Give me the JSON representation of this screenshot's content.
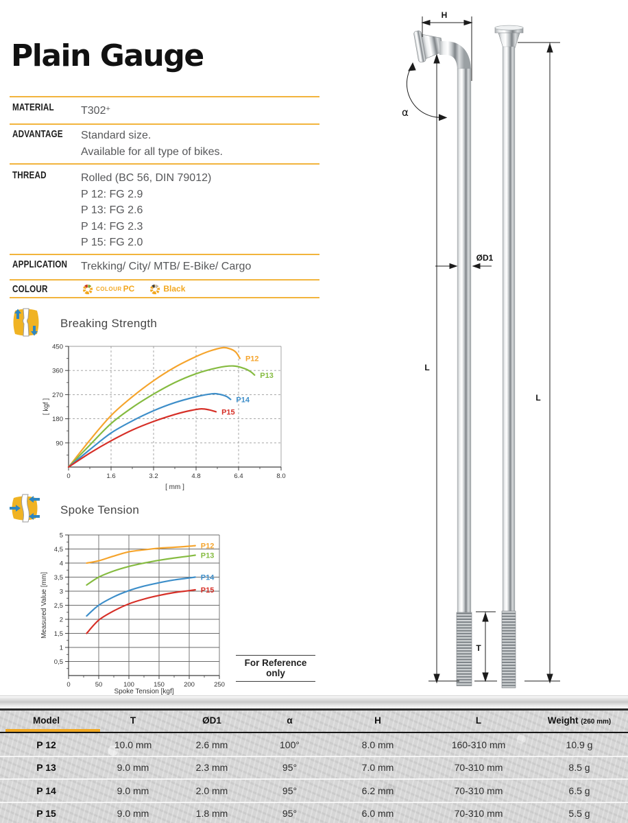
{
  "title": "Plain Gauge",
  "specs": {
    "material": {
      "label": "MATERIAL",
      "value": "T302",
      "sup": "+"
    },
    "advantage": {
      "label": "ADVANTAGE",
      "line1": "Standard size.",
      "line2": "Available for all type of bikes."
    },
    "thread": {
      "label": "THREAD",
      "line1": "Rolled (BC 56, DIN 79012)",
      "line2": "P 12: FG 2.9",
      "line3": "P 13: FG 2.6",
      "line4": "P 14: FG 2.3",
      "line5": "P 15: FG 2.0"
    },
    "application": {
      "label": "APPLICATION",
      "value": "Trekking/ City/ MTB/ E-Bike/ Cargo"
    },
    "colour": {
      "label": "COLOUR",
      "option1_prefix": "COLOUR",
      "option1_name": "PC",
      "option2_name": "Black"
    }
  },
  "sections": {
    "breaking_strength_title": "Breaking Strength",
    "spoke_tension_title": "Spoke Tension"
  },
  "reference_note": "For Reference only",
  "colors": {
    "accent_line": "#F2B43C",
    "table_accent": "#F0A822",
    "p12": "#F5A42C",
    "p13": "#85BB40",
    "p14": "#3D8EC9",
    "p15": "#D62F27"
  },
  "chart_data": [
    {
      "id": "chart-bs",
      "type": "line",
      "title": "Breaking Strength",
      "xlabel": "[ mm ]",
      "ylabel": "[ kgf ]",
      "xlim": [
        0,
        8
      ],
      "ylim": [
        0,
        450
      ],
      "grid": "dashed",
      "legend_position": "end-of-line",
      "x_ticks": [
        {
          "v": 0,
          "t": "0"
        },
        {
          "v": 1.6,
          "t": "1.6"
        },
        {
          "v": 3.2,
          "t": "3.2"
        },
        {
          "v": 4.8,
          "t": "4.8"
        },
        {
          "v": 6.4,
          "t": "6.4"
        },
        {
          "v": 8,
          "t": "8.0"
        }
      ],
      "y_ticks": [
        {
          "v": 90,
          "t": "90"
        },
        {
          "v": 180,
          "t": "180"
        },
        {
          "v": 270,
          "t": "270"
        },
        {
          "v": 360,
          "t": "360"
        },
        {
          "v": 450,
          "t": "450"
        }
      ],
      "x_minor": [
        0.8,
        2.4,
        4.0,
        5.6,
        7.2
      ],
      "y_minor": [
        45,
        135,
        225,
        315,
        405
      ],
      "series": [
        {
          "name": "P12",
          "color": "#F5A42C",
          "points": [
            [
              0,
              0
            ],
            [
              0.8,
              100
            ],
            [
              1.6,
              192
            ],
            [
              2.4,
              262
            ],
            [
              3.2,
              322
            ],
            [
              4.0,
              372
            ],
            [
              4.8,
              412
            ],
            [
              5.3,
              432
            ],
            [
              5.8,
              445
            ],
            [
              6.1,
              440
            ],
            [
              6.3,
              428
            ],
            [
              6.45,
              405
            ]
          ]
        },
        {
          "name": "P13",
          "color": "#85BB40",
          "points": [
            [
              0,
              0
            ],
            [
              0.8,
              82
            ],
            [
              1.6,
              162
            ],
            [
              2.4,
              222
            ],
            [
              3.2,
              272
            ],
            [
              4.0,
              315
            ],
            [
              4.8,
              348
            ],
            [
              5.6,
              370
            ],
            [
              6.2,
              377
            ],
            [
              6.6,
              368
            ],
            [
              6.85,
              356
            ],
            [
              7.0,
              343
            ]
          ]
        },
        {
          "name": "P14",
          "color": "#3D8EC9",
          "points": [
            [
              0,
              0
            ],
            [
              0.8,
              65
            ],
            [
              1.6,
              127
            ],
            [
              2.4,
              172
            ],
            [
              3.2,
              210
            ],
            [
              4.0,
              240
            ],
            [
              4.8,
              262
            ],
            [
              5.4,
              273
            ],
            [
              5.7,
              271
            ],
            [
              5.95,
              263
            ],
            [
              6.1,
              252
            ]
          ]
        },
        {
          "name": "P15",
          "color": "#D62F27",
          "points": [
            [
              0,
              0
            ],
            [
              0.8,
              52
            ],
            [
              1.6,
              98
            ],
            [
              2.4,
              138
            ],
            [
              3.2,
              170
            ],
            [
              4.0,
              196
            ],
            [
              4.6,
              211
            ],
            [
              5.0,
              217
            ],
            [
              5.3,
              213
            ],
            [
              5.55,
              206
            ]
          ]
        }
      ]
    },
    {
      "id": "chart-st",
      "type": "line",
      "title": "Spoke Tension",
      "xlabel": "Spoke Tension [kgf]",
      "ylabel": "Measured Value [mm]",
      "xlim": [
        0,
        250
      ],
      "ylim": [
        0,
        5
      ],
      "grid": "solid",
      "legend_position": "end-of-line",
      "x_ticks": [
        {
          "v": 0,
          "t": "0"
        },
        {
          "v": 50,
          "t": "50"
        },
        {
          "v": 100,
          "t": "100"
        },
        {
          "v": 150,
          "t": "150"
        },
        {
          "v": 200,
          "t": "200"
        },
        {
          "v": 250,
          "t": "250"
        }
      ],
      "y_ticks": [
        {
          "v": 0.5,
          "t": "0,5"
        },
        {
          "v": 1,
          "t": "1"
        },
        {
          "v": 1.5,
          "t": "1,5"
        },
        {
          "v": 2,
          "t": "2"
        },
        {
          "v": 2.5,
          "t": "2,5"
        },
        {
          "v": 3,
          "t": "3"
        },
        {
          "v": 3.5,
          "t": "3,5"
        },
        {
          "v": 4,
          "t": "4"
        },
        {
          "v": 4.5,
          "t": "4,5"
        },
        {
          "v": 5,
          "t": "5"
        }
      ],
      "x_minor": [
        25,
        75,
        125,
        175,
        225
      ],
      "y_minor": [
        0.25,
        0.75,
        1.25,
        1.75,
        2.25,
        2.75,
        3.25,
        3.75,
        4.25,
        4.75
      ],
      "series": [
        {
          "name": "P12",
          "color": "#F5A42C",
          "points": [
            [
              30,
              4.0
            ],
            [
              50,
              4.08
            ],
            [
              75,
              4.25
            ],
            [
              100,
              4.4
            ],
            [
              125,
              4.47
            ],
            [
              150,
              4.53
            ],
            [
              175,
              4.56
            ],
            [
              200,
              4.6
            ],
            [
              210,
              4.62
            ]
          ]
        },
        {
          "name": "P13",
          "color": "#85BB40",
          "points": [
            [
              30,
              3.22
            ],
            [
              50,
              3.5
            ],
            [
              75,
              3.72
            ],
            [
              100,
              3.88
            ],
            [
              125,
              4.0
            ],
            [
              150,
              4.1
            ],
            [
              175,
              4.18
            ],
            [
              200,
              4.25
            ],
            [
              210,
              4.28
            ]
          ]
        },
        {
          "name": "P14",
          "color": "#3D8EC9",
          "points": [
            [
              30,
              2.12
            ],
            [
              50,
              2.5
            ],
            [
              75,
              2.8
            ],
            [
              100,
              3.02
            ],
            [
              125,
              3.18
            ],
            [
              150,
              3.3
            ],
            [
              175,
              3.4
            ],
            [
              200,
              3.47
            ],
            [
              210,
              3.5
            ]
          ]
        },
        {
          "name": "P15",
          "color": "#D62F27",
          "points": [
            [
              30,
              1.5
            ],
            [
              50,
              1.97
            ],
            [
              75,
              2.3
            ],
            [
              100,
              2.55
            ],
            [
              125,
              2.72
            ],
            [
              150,
              2.85
            ],
            [
              175,
              2.95
            ],
            [
              200,
              3.02
            ],
            [
              210,
              3.05
            ]
          ]
        }
      ]
    }
  ],
  "diagram": {
    "labels": {
      "h": "H",
      "alpha": "α",
      "d1": "ØD1",
      "l_left": "L",
      "l_right": "L",
      "t": "T"
    }
  },
  "table": {
    "columns": [
      {
        "label": "Model"
      },
      {
        "label": "T"
      },
      {
        "label": "ØD1"
      },
      {
        "label": "α"
      },
      {
        "label": "H"
      },
      {
        "label": "L"
      },
      {
        "label": "Weight",
        "sub": "(260 mm)"
      }
    ],
    "rows": [
      [
        "P 12",
        "10.0 mm",
        "2.6 mm",
        "100°",
        "8.0 mm",
        "160-310 mm",
        "10.9 g"
      ],
      [
        "P 13",
        "9.0 mm",
        "2.3 mm",
        "95°",
        "7.0 mm",
        "70-310 mm",
        "8.5 g"
      ],
      [
        "P 14",
        "9.0 mm",
        "2.0 mm",
        "95°",
        "6.2 mm",
        "70-310 mm",
        "6.5 g"
      ],
      [
        "P 15",
        "9.0 mm",
        "1.8 mm",
        "95°",
        "6.0 mm",
        "70-310 mm",
        "5.5 g"
      ]
    ]
  }
}
